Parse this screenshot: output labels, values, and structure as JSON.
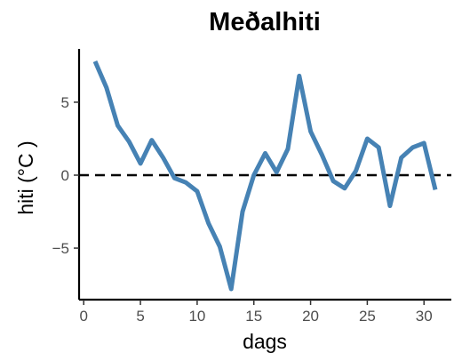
{
  "chart_data": {
    "type": "line",
    "title": "Meðalhiti",
    "xlabel": "dags",
    "ylabel": "hiti (°C )",
    "xlim": [
      1,
      31
    ],
    "ylim": [
      -7.8,
      7.8
    ],
    "x_ticks": [
      0,
      5,
      10,
      15,
      20,
      25,
      30
    ],
    "x_tick_labels": [
      "0",
      "5",
      "10",
      "15",
      "20",
      "25",
      "30"
    ],
    "y_ticks": [
      5,
      0,
      -5
    ],
    "y_tick_labels": [
      "5",
      "0",
      "−5"
    ],
    "reference_line": {
      "y": 0,
      "style": "dashed",
      "color": "#000000"
    },
    "grid": false,
    "series": [
      {
        "color": "#4682b4",
        "x": [
          1,
          2,
          3,
          4,
          5,
          6,
          7,
          8,
          9,
          10,
          11,
          12,
          13,
          14,
          15,
          16,
          17,
          18,
          19,
          20,
          21,
          22,
          23,
          24,
          25,
          26,
          27,
          28,
          29,
          30,
          31
        ],
        "y": [
          7.8,
          6.0,
          3.4,
          2.3,
          0.8,
          2.4,
          1.2,
          -0.2,
          -0.5,
          -1.1,
          -3.3,
          -4.9,
          -7.8,
          -2.5,
          0.0,
          1.5,
          0.2,
          1.8,
          6.8,
          3.0,
          1.4,
          -0.4,
          -0.9,
          0.3,
          2.5,
          1.9,
          -2.1,
          1.2,
          1.9,
          2.2,
          -1.0
        ]
      }
    ]
  }
}
